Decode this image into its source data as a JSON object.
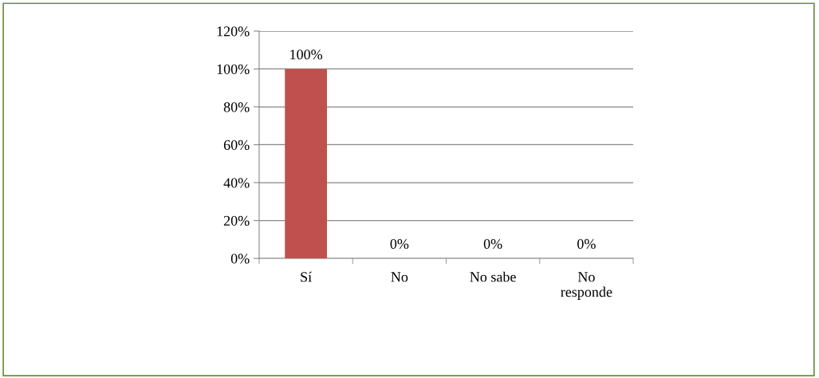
{
  "chart_data": {
    "type": "bar",
    "categories": [
      "Sí",
      "No",
      "No sabe",
      "No responde"
    ],
    "values": [
      100,
      0,
      0,
      0
    ],
    "color": "#c0504d",
    "value_labels": [
      "100%",
      "0%",
      "0%",
      "0%"
    ],
    "ylim": [
      0,
      120
    ],
    "yticks": [
      {
        "value": 0,
        "label": "0%"
      },
      {
        "value": 20,
        "label": "20%"
      },
      {
        "value": 40,
        "label": "40%"
      },
      {
        "value": 60,
        "label": "60%"
      },
      {
        "value": 80,
        "label": "80%"
      },
      {
        "value": 100,
        "label": "100%"
      },
      {
        "value": 120,
        "label": "120%"
      }
    ],
    "grid": "y",
    "legend": false
  }
}
